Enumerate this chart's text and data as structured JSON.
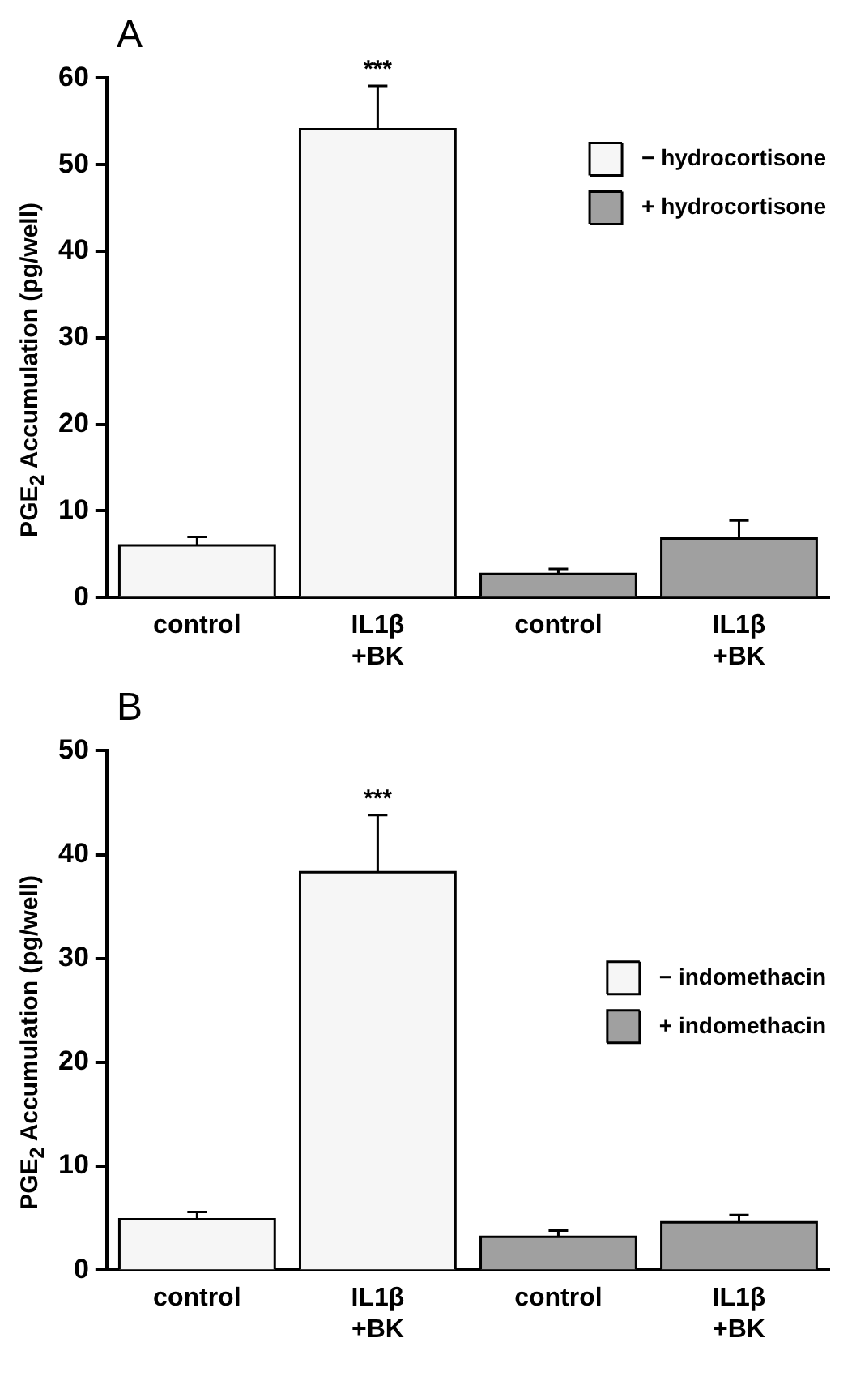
{
  "chart_data": [
    {
      "type": "bar",
      "title": "A",
      "ylabel": "PGE$_{2}$ Accumulation (pg/well)",
      "categories": [
        "control",
        "IL1β\n+BK",
        "control",
        "IL1β\n+BK"
      ],
      "series": [
        {
          "name": "− hydrocortisone",
          "color": "#f6f6f6",
          "values": [
            6.0,
            54.1,
            null,
            null
          ],
          "errors": [
            1.0,
            5.0,
            null,
            null
          ]
        },
        {
          "name": "+ hydrocortisone",
          "color": "#a0a0a0",
          "values": [
            null,
            null,
            2.7,
            6.8
          ],
          "errors": [
            null,
            null,
            0.6,
            2.1
          ]
        }
      ],
      "ylim": [
        0,
        60
      ],
      "yticks": [
        0,
        10,
        20,
        30,
        40,
        50,
        60
      ],
      "grid": false,
      "legend": "top right",
      "annotations": [
        {
          "text": "***",
          "x": "IL1β\n+BK",
          "y": 59.1
        }
      ]
    },
    {
      "type": "bar",
      "title": "B",
      "ylabel": "PGE$_{2}$ Accumulation (pg/well)",
      "categories": [
        "control",
        "IL1β\n+BK",
        "control",
        "IL1β\n+BK"
      ],
      "series": [
        {
          "name": "− indomethacin",
          "color": "#f6f6f6",
          "values": [
            4.9,
            38.3,
            null,
            null
          ],
          "errors": [
            0.7,
            5.5,
            null,
            null
          ]
        },
        {
          "name": "+ indomethacin",
          "color": "#a0a0a0",
          "values": [
            null,
            null,
            3.2,
            4.6
          ],
          "errors": [
            null,
            null,
            0.6,
            0.7
          ]
        }
      ],
      "ylim": [
        0,
        50
      ],
      "yticks": [
        0,
        10,
        20,
        30,
        40,
        50
      ],
      "grid": false,
      "legend": "right",
      "annotations": [
        {
          "text": "***",
          "x": "IL1β\n+BK",
          "y": 43.8
        }
      ]
    }
  ]
}
